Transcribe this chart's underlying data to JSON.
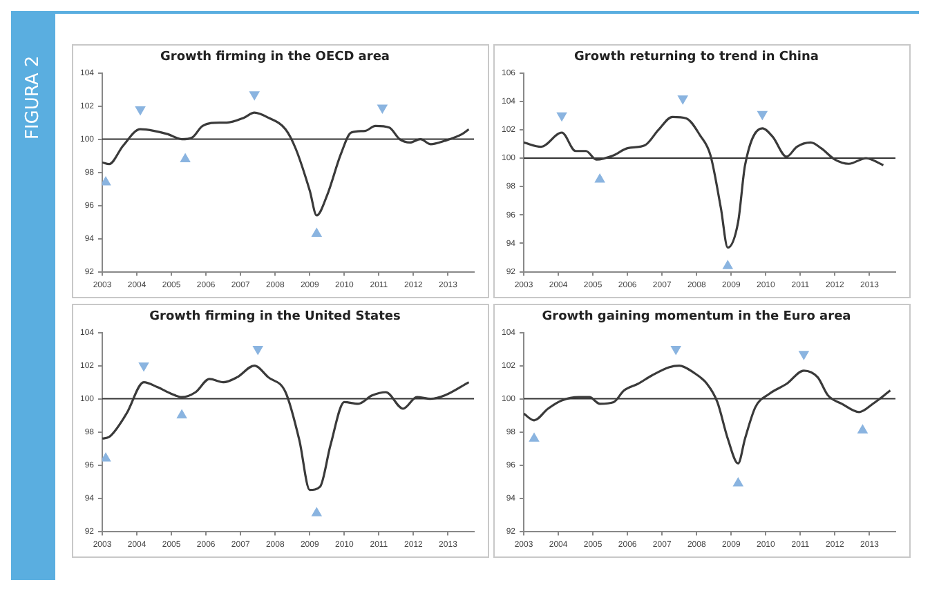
{
  "chart_data": [
    {
      "type": "line",
      "title": "Growth firming in the OECD area",
      "annotations": [
        "FIGURA 2"
      ],
      "xlim": [
        2003,
        2013.75
      ],
      "xticks": [
        2003,
        2004,
        2005,
        2006,
        2007,
        2008,
        2009,
        2010,
        2011,
        2012,
        2013
      ],
      "ylim": [
        92,
        104
      ],
      "yticks": [
        92,
        94,
        96,
        98,
        100,
        102,
        104
      ],
      "grid": false,
      "legend": false,
      "ref_lines": [
        {
          "axis": "y",
          "value": 100,
          "color": "#333333"
        }
      ],
      "series": [
        {
          "type": "line",
          "color": "#3a3a3a",
          "marker": "none",
          "x": [
            2003,
            2003.2,
            2003.6,
            2004.1,
            2004.5,
            2004.9,
            2005.3,
            2005.6,
            2005.9,
            2006.4,
            2006.6,
            2007.1,
            2007.4,
            2007.8,
            2008.3,
            2008.6,
            2009.0,
            2009.2,
            2009.5,
            2009.9,
            2010.2,
            2010.6,
            2010.9,
            2011.3,
            2011.6,
            2011.9,
            2012.2,
            2012.5,
            2012.9,
            2013.4,
            2013.6
          ],
          "values": [
            98.6,
            98.5,
            99.6,
            100.6,
            100.5,
            100.3,
            100.0,
            100.1,
            100.8,
            101.0,
            101.0,
            101.3,
            101.6,
            101.3,
            100.6,
            99.4,
            96.9,
            95.4,
            96.6,
            99.1,
            100.4,
            100.5,
            100.8,
            100.7,
            100.0,
            99.8,
            100.0,
            99.7,
            99.9,
            100.3,
            100.6
          ]
        },
        {
          "type": "scatter",
          "color": "#8ab4e0",
          "marker": "triangle-down",
          "x": [
            2004.1,
            2007.4,
            2011.1
          ],
          "values": [
            101.8,
            102.7,
            101.9
          ]
        },
        {
          "type": "scatter",
          "color": "#8ab4e0",
          "marker": "triangle",
          "x": [
            2003.1,
            2005.4,
            2009.2
          ],
          "values": [
            97.4,
            98.8,
            94.3
          ]
        }
      ]
    },
    {
      "type": "line",
      "title": "Growth returning to trend in China",
      "xlim": [
        2003,
        2013.75
      ],
      "xticks": [
        2003,
        2004,
        2005,
        2006,
        2007,
        2008,
        2009,
        2010,
        2011,
        2012,
        2013
      ],
      "ylim": [
        92,
        106
      ],
      "yticks": [
        92,
        94,
        96,
        98,
        100,
        102,
        104,
        106
      ],
      "grid": false,
      "legend": false,
      "ref_lines": [
        {
          "axis": "y",
          "value": 100,
          "color": "#333333"
        }
      ],
      "series": [
        {
          "type": "line",
          "color": "#3a3a3a",
          "marker": "none",
          "x": [
            2003,
            2003.5,
            2004.1,
            2004.5,
            2004.8,
            2005.1,
            2005.6,
            2006.0,
            2006.5,
            2006.9,
            2007.3,
            2007.7,
            2008.1,
            2008.4,
            2008.7,
            2008.9,
            2009.2,
            2009.4,
            2009.9,
            2010.2,
            2010.6,
            2010.9,
            2011.3,
            2011.6,
            2012.0,
            2012.4,
            2012.9,
            2013.4
          ],
          "values": [
            101.1,
            100.8,
            101.8,
            100.5,
            100.5,
            99.9,
            100.2,
            100.7,
            100.9,
            102.0,
            102.9,
            102.8,
            101.6,
            100.2,
            96.5,
            93.7,
            95.5,
            99.5,
            102.1,
            101.5,
            100.1,
            100.8,
            101.1,
            100.7,
            99.9,
            99.6,
            100.0,
            99.5
          ]
        },
        {
          "type": "scatter",
          "color": "#8ab4e0",
          "marker": "triangle-down",
          "x": [
            2004.1,
            2007.6,
            2009.9
          ],
          "values": [
            103.0,
            104.2,
            103.1
          ]
        },
        {
          "type": "scatter",
          "color": "#8ab4e0",
          "marker": "triangle",
          "x": [
            2005.2,
            2008.9
          ],
          "values": [
            98.5,
            92.4
          ]
        }
      ]
    },
    {
      "type": "line",
      "title": "Growth firming in the United States",
      "xlim": [
        2003,
        2013.75
      ],
      "xticks": [
        2003,
        2004,
        2005,
        2006,
        2007,
        2008,
        2009,
        2010,
        2011,
        2012,
        2013
      ],
      "ylim": [
        92,
        104
      ],
      "yticks": [
        92,
        94,
        96,
        98,
        100,
        102,
        104
      ],
      "grid": false,
      "legend": false,
      "ref_lines": [
        {
          "axis": "y",
          "value": 100,
          "color": "#333333"
        }
      ],
      "series": [
        {
          "type": "line",
          "color": "#3a3a3a",
          "marker": "none",
          "x": [
            2003,
            2003.2,
            2003.7,
            2004.2,
            2004.6,
            2005.0,
            2005.3,
            2005.7,
            2006.1,
            2006.5,
            2006.9,
            2007.4,
            2007.8,
            2008.3,
            2008.7,
            2009.0,
            2009.3,
            2009.6,
            2010.0,
            2010.4,
            2010.8,
            2011.2,
            2011.7,
            2012.1,
            2012.5,
            2012.9,
            2013.6
          ],
          "values": [
            97.6,
            97.7,
            99.1,
            101.0,
            100.7,
            100.3,
            100.1,
            100.4,
            101.2,
            101.0,
            101.3,
            102.0,
            101.3,
            100.4,
            97.5,
            94.5,
            94.7,
            97.2,
            99.8,
            99.7,
            100.2,
            100.4,
            99.4,
            100.1,
            100.0,
            100.2,
            101.0
          ]
        },
        {
          "type": "scatter",
          "color": "#8ab4e0",
          "marker": "triangle-down",
          "x": [
            2004.2,
            2007.5
          ],
          "values": [
            102.0,
            103.0
          ]
        },
        {
          "type": "scatter",
          "color": "#8ab4e0",
          "marker": "triangle",
          "x": [
            2003.1,
            2005.3,
            2009.2
          ],
          "values": [
            96.4,
            99.0,
            93.1
          ]
        }
      ]
    },
    {
      "type": "line",
      "title": "Growth gaining momentum in the Euro area",
      "xlim": [
        2003,
        2013.75
      ],
      "xticks": [
        2003,
        2004,
        2005,
        2006,
        2007,
        2008,
        2009,
        2010,
        2011,
        2012,
        2013
      ],
      "ylim": [
        92,
        104
      ],
      "yticks": [
        92,
        94,
        96,
        98,
        100,
        102,
        104
      ],
      "grid": false,
      "legend": false,
      "ref_lines": [
        {
          "axis": "y",
          "value": 100,
          "color": "#333333"
        }
      ],
      "series": [
        {
          "type": "line",
          "color": "#3a3a3a",
          "marker": "none",
          "x": [
            2003,
            2003.3,
            2003.7,
            2004.1,
            2004.6,
            2004.9,
            2005.2,
            2005.6,
            2005.9,
            2006.3,
            2006.7,
            2007.2,
            2007.5,
            2007.9,
            2008.3,
            2008.6,
            2008.9,
            2009.2,
            2009.4,
            2009.7,
            2010.1,
            2010.6,
            2011.1,
            2011.5,
            2011.8,
            2012.2,
            2012.7,
            2013.1,
            2013.6
          ],
          "values": [
            99.1,
            98.7,
            99.4,
            99.9,
            100.1,
            100.1,
            99.7,
            99.8,
            100.5,
            100.9,
            101.4,
            101.9,
            102.0,
            101.6,
            100.9,
            99.8,
            97.6,
            96.1,
            97.6,
            99.5,
            100.3,
            100.9,
            101.7,
            101.3,
            100.2,
            99.7,
            99.2,
            99.7,
            100.5
          ]
        },
        {
          "type": "scatter",
          "color": "#8ab4e0",
          "marker": "triangle-down",
          "x": [
            2007.4,
            2011.1
          ],
          "values": [
            103.0,
            102.7
          ]
        },
        {
          "type": "scatter",
          "color": "#8ab4e0",
          "marker": "triangle",
          "x": [
            2003.3,
            2009.2,
            2012.8
          ],
          "values": [
            97.6,
            94.9,
            98.1
          ]
        }
      ]
    }
  ]
}
